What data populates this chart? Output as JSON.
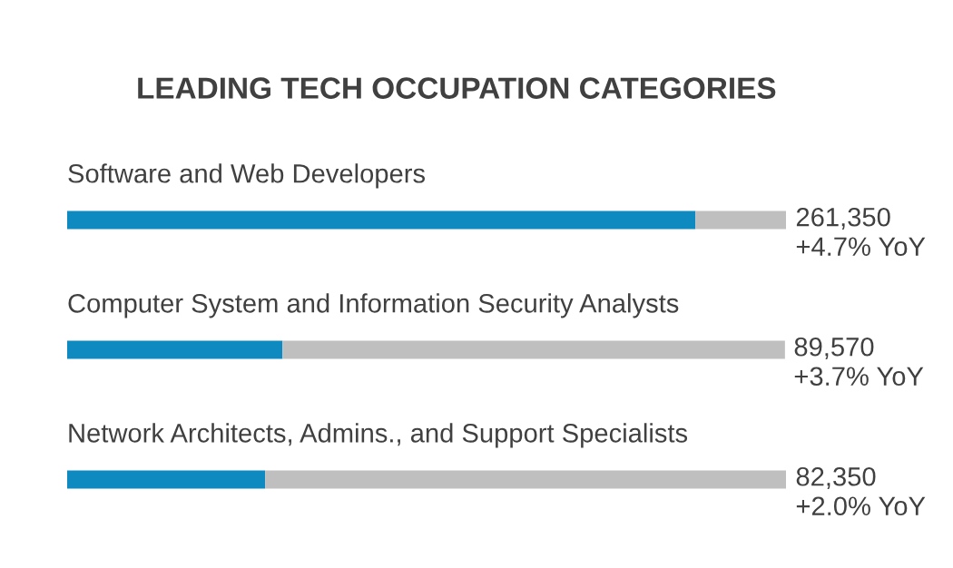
{
  "chart_data": {
    "type": "bar",
    "title": "LEADING TECH OCCUPATION CATEGORIES",
    "orientation": "horizontal",
    "stacked": true,
    "categories": [
      "Software and Web Developers",
      "Computer System and Information Security Analysts",
      "Network Architects, Admins., and Support Specialists"
    ],
    "series": [
      {
        "color": "#0e8ac0",
        "values": [
          261350,
          89570,
          82350
        ],
        "value_labels": [
          "261,350\n+4.7% YoY",
          "89,570\n+3.7% YoY",
          "82,350\n+2.0% YoY"
        ]
      },
      {
        "color": "#bfbfbf",
        "values": [
          38000,
          209000,
          217000
        ]
      }
    ],
    "xlim": [
      0,
      299000
    ]
  }
}
